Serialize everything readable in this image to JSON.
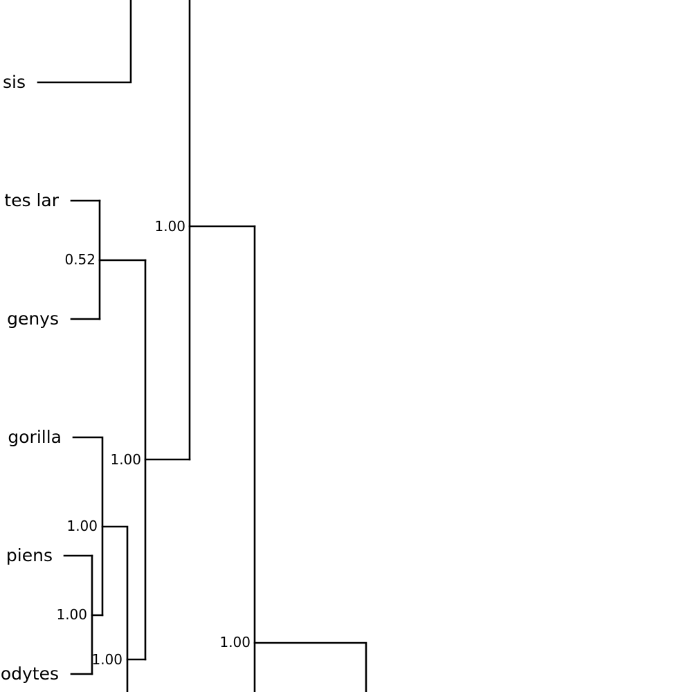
{
  "tree": {
    "taxa": {
      "t1": "sis",
      "t2": "tes lar",
      "t3": "genys",
      "t4": "gorilla",
      "t5": "piens",
      "t6": "odytes"
    },
    "support": {
      "n_hylobates": "0.52",
      "n_great_apes_outer": "1.00",
      "n_hominoids": "1.00",
      "n_gorilla_clade": "1.00",
      "n_homo_pan": "1.00",
      "n_partial_low": "1.00",
      "n_upper_clade": "1.00"
    },
    "colors": {
      "line": "#000000",
      "text": "#000000",
      "background": "#ffffff"
    }
  }
}
